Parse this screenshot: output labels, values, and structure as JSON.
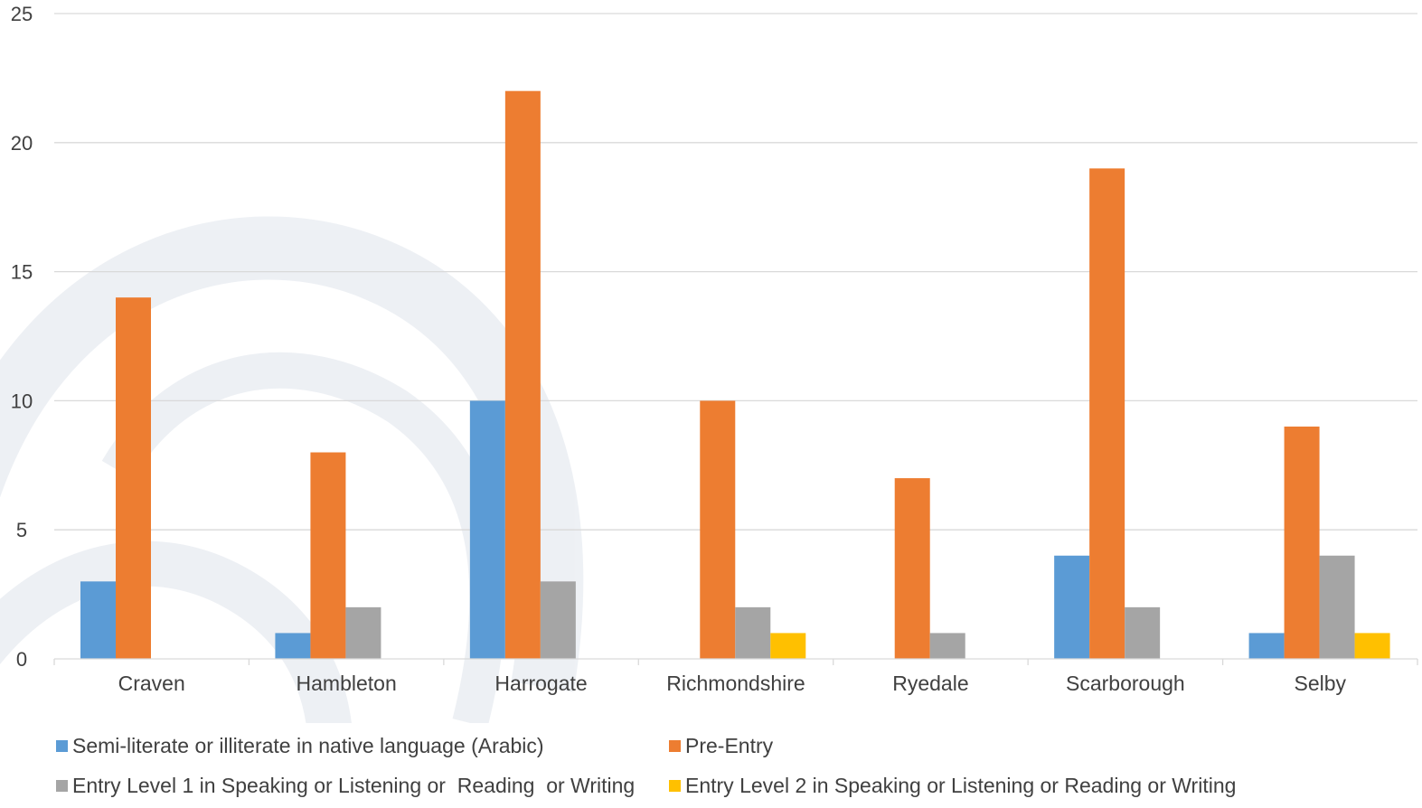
{
  "chart_data": {
    "type": "bar",
    "categories": [
      "Craven",
      "Hambleton",
      "Harrogate",
      "Richmondshire",
      "Ryedale",
      "Scarborough",
      "Selby"
    ],
    "series": [
      {
        "name": "Semi-literate or illiterate in native language (Arabic)",
        "color": "#5B9BD5",
        "values": [
          3,
          1,
          10,
          0,
          0,
          4,
          1
        ]
      },
      {
        "name": "Pre-Entry",
        "color": "#ED7D31",
        "values": [
          14,
          8,
          22,
          10,
          7,
          19,
          9
        ]
      },
      {
        "name": "Entry Level 1 in Speaking or Listening or  Reading  or Writing",
        "color": "#A5A5A5",
        "values": [
          0,
          2,
          3,
          2,
          1,
          2,
          4
        ]
      },
      {
        "name": "Entry Level 2 in Speaking or Listening or Reading or Writing",
        "color": "#FFC000",
        "values": [
          0,
          0,
          0,
          1,
          0,
          0,
          1
        ]
      }
    ],
    "yticks": [
      "0",
      "5",
      "10",
      "15",
      "20",
      "25"
    ],
    "ylim": [
      0,
      25
    ],
    "grid": true,
    "legend_position": "bottom"
  }
}
